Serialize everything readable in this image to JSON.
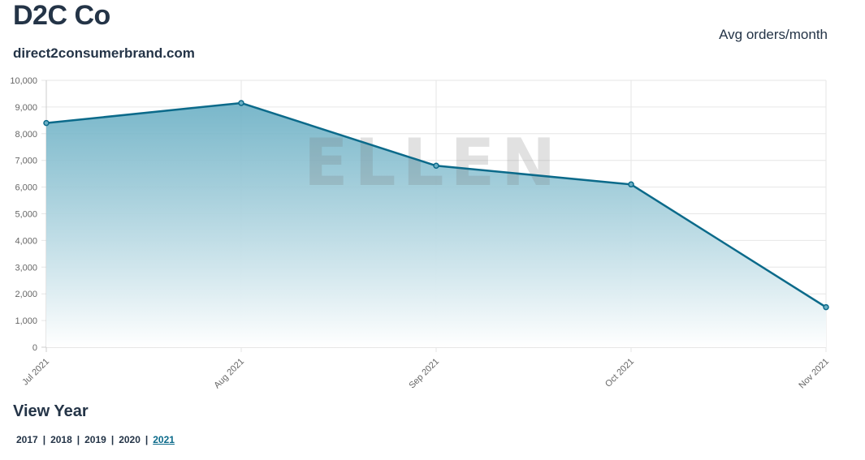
{
  "header": {
    "company": "D2C Co",
    "domain": "direct2consumerbrand.com",
    "metric_label": "Avg orders/month"
  },
  "watermark": "ELLEN",
  "colors": {
    "line": "#0b6a8a",
    "fill_top": "#6aafc4",
    "grid": "#e6e6e6"
  },
  "chart_data": {
    "type": "area",
    "title": "",
    "xlabel": "",
    "ylabel": "",
    "categories": [
      "Jul 2021",
      "Aug 2021",
      "Sep 2021",
      "Oct 2021",
      "Nov 2021"
    ],
    "series": [
      {
        "values": [
          8400,
          9150,
          6800,
          6100,
          1500
        ]
      }
    ],
    "ylim": [
      0,
      10000
    ],
    "yticks": [
      0,
      1000,
      2000,
      3000,
      4000,
      5000,
      6000,
      7000,
      8000,
      9000,
      10000
    ],
    "ytick_labels": [
      "0",
      "1,000",
      "2,000",
      "3,000",
      "4,000",
      "5,000",
      "6,000",
      "7,000",
      "8,000",
      "9,000",
      "10,000"
    ],
    "grid": true,
    "legend": "none"
  },
  "year_selector": {
    "title": "View Year",
    "years": [
      "2017",
      "2018",
      "2019",
      "2020",
      "2021"
    ],
    "active": "2021",
    "separator": "|"
  }
}
